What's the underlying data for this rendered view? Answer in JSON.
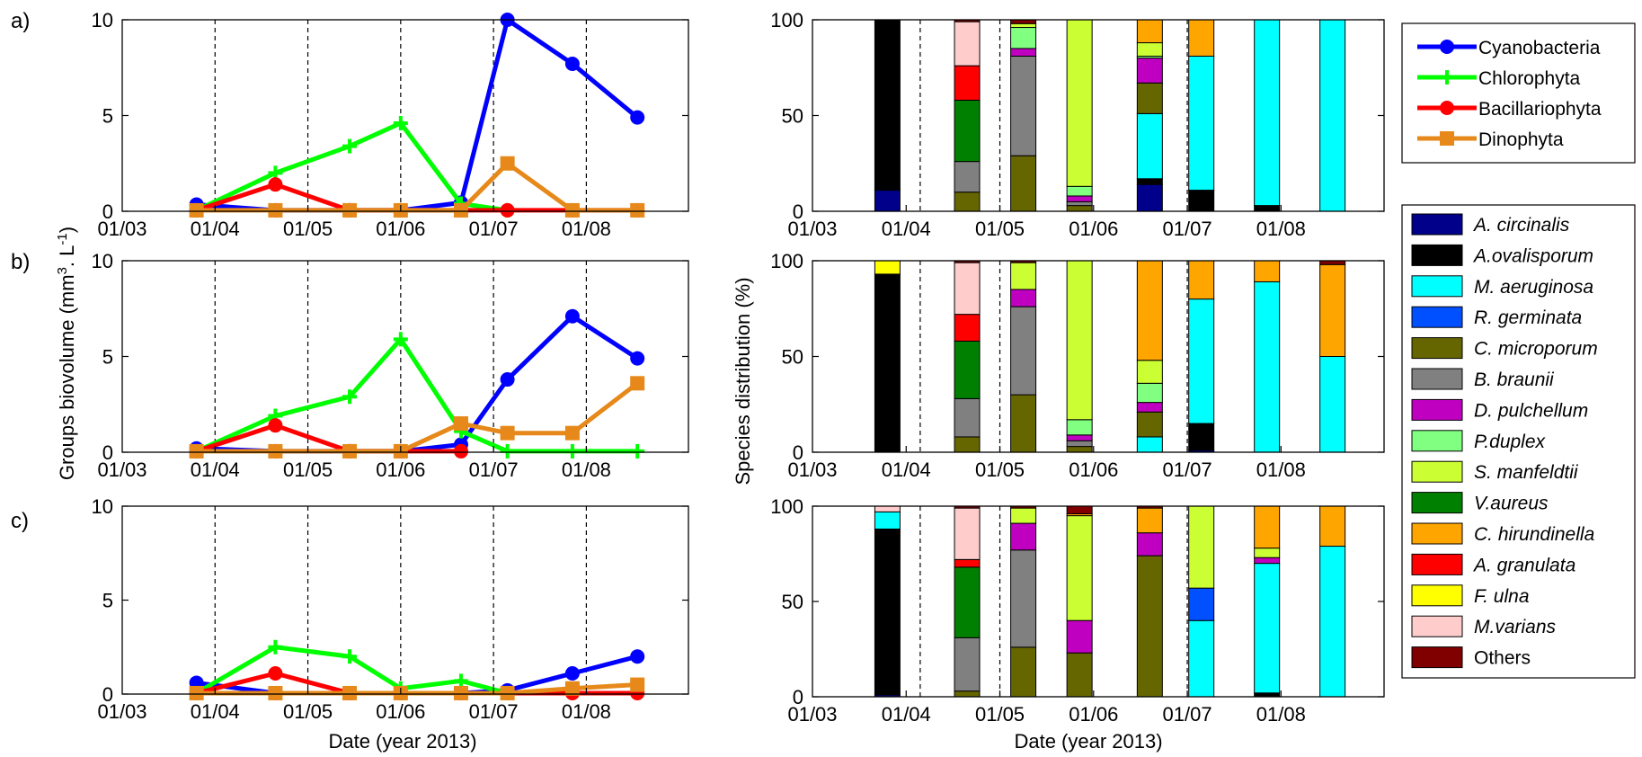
{
  "panel_labels": [
    "a)",
    "b)",
    "c)"
  ],
  "axes_text": {
    "left_ylabel": "Groups biovolume (mm",
    "left_ylabel_sup1": "3",
    "left_ylabel_mid": ". L",
    "left_ylabel_sup2": "-1",
    "left_ylabel_end": ")",
    "left_xlabel": "Date (year 2013)",
    "right_ylabel": "Species distribution (%)",
    "right_xlabel": "Date (year 2013)",
    "months": [
      "01/03",
      "01/04",
      "01/05",
      "01/06",
      "01/07",
      "01/08"
    ]
  },
  "group_legend": [
    {
      "label": "Cyanobacteria",
      "color": "#0000ff",
      "marker": "circle"
    },
    {
      "label": "Chlorophyta",
      "color": "#00ff00",
      "marker": "plus"
    },
    {
      "label": "Bacillariophyta",
      "color": "#ff0000",
      "marker": "circle"
    },
    {
      "label": "Dinophyta",
      "color": "#e6891a",
      "marker": "square"
    }
  ],
  "species_legend": [
    {
      "label": "A. circinalis",
      "color": "#00008b",
      "italic": true
    },
    {
      "label": "A.ovalisporum",
      "color": "#000000",
      "italic": true
    },
    {
      "label": "M. aeruginosa",
      "color": "#00ffff",
      "italic": true
    },
    {
      "label": "R. germinata",
      "color": "#0050ff",
      "italic": true
    },
    {
      "label": "C. microporum",
      "color": "#666600",
      "italic": true
    },
    {
      "label": "B. braunii",
      "color": "#808080",
      "italic": true
    },
    {
      "label": "D. pulchellum",
      "color": "#c000c0",
      "italic": true
    },
    {
      "label": "P.duplex",
      "color": "#80ff80",
      "italic": true
    },
    {
      "label": "S. manfeldtii",
      "color": "#ccff33",
      "italic": true
    },
    {
      "label": "V.aureus",
      "color": "#008000",
      "italic": true
    },
    {
      "label": "C. hirundinella",
      "color": "#ffa500",
      "italic": true
    },
    {
      "label": "A. granulata",
      "color": "#ff0000",
      "italic": true
    },
    {
      "label": "F. ulna",
      "color": "#ffff00",
      "italic": true
    },
    {
      "label": "M.varians",
      "color": "#ffcccc",
      "italic": true
    },
    {
      "label": "Others",
      "color": "#800000",
      "italic": false
    }
  ],
  "chart_data": [
    {
      "type": "line",
      "panel": "a)",
      "xlabel": "",
      "ylabel": "",
      "ylim": [
        0,
        10
      ],
      "yticks": [
        0,
        5,
        10
      ],
      "x_months": [
        "01/03",
        "01/04",
        "01/05",
        "01/06",
        "01/07",
        "01/08"
      ],
      "vlines": [
        1.0,
        2.0,
        3.0,
        4.0,
        5.0
      ],
      "series": [
        {
          "name": "Cyanobacteria",
          "x": [
            0.8,
            1.65,
            2.45,
            3.0,
            3.65,
            4.15,
            4.85,
            5.55
          ],
          "y": [
            0.35,
            0.05,
            0.05,
            0.05,
            0.45,
            10,
            7.7,
            4.9
          ]
        },
        {
          "name": "Chlorophyta",
          "x": [
            0.8,
            1.65,
            2.45,
            3.0,
            3.65,
            4.15
          ],
          "y": [
            0.05,
            2.0,
            3.4,
            4.6,
            0.4,
            0.05
          ]
        },
        {
          "name": "Bacillariophyta",
          "x": [
            0.8,
            1.65,
            2.45,
            3.0,
            3.65,
            4.15,
            4.85,
            5.55
          ],
          "y": [
            0.05,
            1.4,
            0.05,
            0.05,
            0.05,
            0.05,
            0.05,
            0.05
          ]
        },
        {
          "name": "Dinophyta",
          "x": [
            0.8,
            1.65,
            2.45,
            3.0,
            3.65,
            4.15,
            4.85,
            5.55
          ],
          "y": [
            0.05,
            0.05,
            0.05,
            0.05,
            0.05,
            2.5,
            0.05,
            0.05
          ]
        }
      ]
    },
    {
      "type": "line",
      "panel": "b)",
      "xlabel": "",
      "ylabel": "Groups biovolume (mm3. L-1)",
      "ylim": [
        0,
        10
      ],
      "yticks": [
        0,
        5,
        10
      ],
      "x_months": [
        "01/03",
        "01/04",
        "01/05",
        "01/06",
        "01/07",
        "01/08"
      ],
      "vlines": [
        1.0,
        2.0,
        3.0,
        4.0,
        5.0
      ],
      "series": [
        {
          "name": "Cyanobacteria",
          "x": [
            0.8,
            1.65,
            2.45,
            3.0,
            3.65,
            4.15,
            4.85,
            5.55
          ],
          "y": [
            0.2,
            0.05,
            0.05,
            0.05,
            0.4,
            3.8,
            7.1,
            4.9
          ]
        },
        {
          "name": "Chlorophyta",
          "x": [
            0.8,
            1.65,
            2.45,
            3.0,
            3.65,
            4.15,
            4.85,
            5.55
          ],
          "y": [
            0.05,
            1.9,
            2.9,
            5.9,
            1.1,
            0.05,
            0.05,
            0.05
          ]
        },
        {
          "name": "Bacillariophyta",
          "x": [
            0.8,
            1.65,
            2.45,
            3.0,
            3.65
          ],
          "y": [
            0.05,
            1.4,
            0.05,
            0.05,
            0.05
          ]
        },
        {
          "name": "Dinophyta",
          "x": [
            0.8,
            1.65,
            2.45,
            3.0,
            3.65,
            4.15,
            4.85,
            5.55
          ],
          "y": [
            0.05,
            0.05,
            0.05,
            0.05,
            1.5,
            1.0,
            1.0,
            3.6
          ]
        }
      ]
    },
    {
      "type": "line",
      "panel": "c)",
      "xlabel": "Date (year 2013)",
      "ylabel": "",
      "ylim": [
        0,
        10
      ],
      "yticks": [
        0,
        5,
        10
      ],
      "x_months": [
        "01/03",
        "01/04",
        "01/05",
        "01/06",
        "01/07",
        "01/08"
      ],
      "vlines": [
        1.0,
        2.0,
        3.0,
        4.0,
        5.0
      ],
      "series": [
        {
          "name": "Cyanobacteria",
          "x": [
            0.8,
            1.65,
            2.45,
            3.0,
            3.65,
            4.15,
            4.85,
            5.55
          ],
          "y": [
            0.6,
            0.05,
            0.05,
            0.05,
            0.05,
            0.2,
            1.1,
            2.0
          ]
        },
        {
          "name": "Chlorophyta",
          "x": [
            0.8,
            1.65,
            2.45,
            3.0,
            3.65,
            4.15
          ],
          "y": [
            0.05,
            2.5,
            2.0,
            0.3,
            0.7,
            0.05
          ]
        },
        {
          "name": "Bacillariophyta",
          "x": [
            0.8,
            1.65,
            2.45,
            3.0,
            3.65,
            4.15,
            4.85,
            5.55
          ],
          "y": [
            0.05,
            1.1,
            0.05,
            0.05,
            0.05,
            0.05,
            0.05,
            0.05
          ]
        },
        {
          "name": "Dinophyta",
          "x": [
            0.8,
            1.65,
            2.45,
            3.0,
            3.65,
            4.15,
            4.85,
            5.55
          ],
          "y": [
            0.05,
            0.05,
            0.05,
            0.05,
            0.05,
            0.05,
            0.3,
            0.5
          ]
        }
      ]
    },
    {
      "type": "bar",
      "stacked": true,
      "panel": "top-right",
      "ylim": [
        0,
        100
      ],
      "yticks": [
        0,
        50,
        100
      ],
      "x_months": [
        "01/03",
        "01/04",
        "01/05",
        "01/06",
        "01/07",
        "01/08"
      ],
      "vlines": [
        1.15,
        2.0,
        4.0
      ],
      "bars": [
        {
          "x": 0.8,
          "segments": [
            [
              "A. circinalis",
              11
            ],
            [
              "A.ovalisporum",
              89
            ]
          ]
        },
        {
          "x": 1.65,
          "segments": [
            [
              "C. microporum",
              10
            ],
            [
              "B. braunii",
              16
            ],
            [
              "V.aureus",
              32
            ],
            [
              "A. granulata",
              18
            ],
            [
              "M.varians",
              23
            ],
            [
              "Others",
              1
            ]
          ]
        },
        {
          "x": 2.25,
          "segments": [
            [
              "C. microporum",
              29
            ],
            [
              "B. braunii",
              52
            ],
            [
              "D. pulchellum",
              4
            ],
            [
              "P.duplex",
              11
            ],
            [
              "S. manfeldtii",
              2
            ],
            [
              "Others",
              2
            ]
          ]
        },
        {
          "x": 2.85,
          "segments": [
            [
              "C. microporum",
              3
            ],
            [
              "B. braunii",
              2
            ],
            [
              "D. pulchellum",
              3
            ],
            [
              "P.duplex",
              5
            ],
            [
              "S. manfeldtii",
              87
            ]
          ]
        },
        {
          "x": 3.6,
          "segments": [
            [
              "A. circinalis",
              14
            ],
            [
              "A.ovalisporum",
              3
            ],
            [
              "M. aeruginosa",
              34
            ],
            [
              "C. microporum",
              16
            ],
            [
              "D. pulchellum",
              13
            ],
            [
              "P.duplex",
              1
            ],
            [
              "S. manfeldtii",
              7
            ],
            [
              "C. hirundinella",
              12
            ]
          ]
        },
        {
          "x": 4.15,
          "segments": [
            [
              "A.ovalisporum",
              11
            ],
            [
              "M. aeruginosa",
              70
            ],
            [
              "C. hirundinella",
              19
            ]
          ]
        },
        {
          "x": 4.85,
          "segments": [
            [
              "A.ovalisporum",
              3
            ],
            [
              "M. aeruginosa",
              97
            ]
          ]
        },
        {
          "x": 5.55,
          "segments": [
            [
              "M. aeruginosa",
              100
            ]
          ]
        }
      ]
    },
    {
      "type": "bar",
      "stacked": true,
      "panel": "middle-right",
      "ylabel": "Species distribution (%)",
      "ylim": [
        0,
        100
      ],
      "yticks": [
        0,
        50,
        100
      ],
      "x_months": [
        "01/03",
        "01/04",
        "01/05",
        "01/06",
        "01/07",
        "01/08"
      ],
      "vlines": [
        1.15,
        2.0,
        4.0
      ],
      "bars": [
        {
          "x": 0.8,
          "segments": [
            [
              "A.ovalisporum",
              93
            ],
            [
              "F. ulna",
              7
            ]
          ]
        },
        {
          "x": 1.65,
          "segments": [
            [
              "C. microporum",
              8
            ],
            [
              "B. braunii",
              20
            ],
            [
              "V.aureus",
              30
            ],
            [
              "A. granulata",
              14
            ],
            [
              "M.varians",
              27
            ],
            [
              "Others",
              1
            ]
          ]
        },
        {
          "x": 2.25,
          "segments": [
            [
              "C. microporum",
              30
            ],
            [
              "B. braunii",
              46
            ],
            [
              "D. pulchellum",
              9
            ],
            [
              "S. manfeldtii",
              14
            ],
            [
              "Others",
              1
            ]
          ]
        },
        {
          "x": 2.85,
          "segments": [
            [
              "C. microporum",
              3
            ],
            [
              "B. braunii",
              3
            ],
            [
              "D. pulchellum",
              3
            ],
            [
              "P.duplex",
              8
            ],
            [
              "S. manfeldtii",
              83
            ]
          ]
        },
        {
          "x": 3.6,
          "segments": [
            [
              "M. aeruginosa",
              8
            ],
            [
              "C. microporum",
              13
            ],
            [
              "D. pulchellum",
              5
            ],
            [
              "P.duplex",
              10
            ],
            [
              "S. manfeldtii",
              12
            ],
            [
              "C. hirundinella",
              52
            ]
          ]
        },
        {
          "x": 4.15,
          "segments": [
            [
              "A. circinalis",
              1
            ],
            [
              "A.ovalisporum",
              14
            ],
            [
              "M. aeruginosa",
              65
            ],
            [
              "C. hirundinella",
              20
            ]
          ]
        },
        {
          "x": 4.85,
          "segments": [
            [
              "M. aeruginosa",
              89
            ],
            [
              "C. hirundinella",
              11
            ]
          ]
        },
        {
          "x": 5.55,
          "segments": [
            [
              "M. aeruginosa",
              50
            ],
            [
              "C. hirundinella",
              48
            ],
            [
              "Others",
              2
            ]
          ]
        }
      ]
    },
    {
      "type": "bar",
      "stacked": true,
      "panel": "bottom-right",
      "xlabel": "Date (year 2013)",
      "ylim": [
        0,
        100
      ],
      "yticks": [
        0,
        50,
        100
      ],
      "x_months": [
        "01/03",
        "01/04",
        "01/05",
        "01/06",
        "01/07",
        "01/08"
      ],
      "vlines": [
        1.15,
        2.0,
        4.0
      ],
      "bars": [
        {
          "x": 0.8,
          "segments": [
            [
              "A. circinalis",
              1
            ],
            [
              "A.ovalisporum",
              87
            ],
            [
              "M. aeruginosa",
              9
            ],
            [
              "M.varians",
              3
            ]
          ]
        },
        {
          "x": 1.65,
          "segments": [
            [
              "C. microporum",
              3
            ],
            [
              "B. braunii",
              28
            ],
            [
              "V.aureus",
              37
            ],
            [
              "A. granulata",
              4
            ],
            [
              "M.varians",
              27
            ],
            [
              "Others",
              1
            ]
          ]
        },
        {
          "x": 2.25,
          "segments": [
            [
              "C. microporum",
              26
            ],
            [
              "B. braunii",
              51
            ],
            [
              "D. pulchellum",
              14
            ],
            [
              "S. manfeldtii",
              8
            ],
            [
              "Others",
              1
            ]
          ]
        },
        {
          "x": 2.85,
          "segments": [
            [
              "C. microporum",
              23
            ],
            [
              "D. pulchellum",
              17
            ],
            [
              "S. manfeldtii",
              55
            ],
            [
              "C. hirundinella",
              1
            ],
            [
              "Others",
              4
            ]
          ]
        },
        {
          "x": 3.6,
          "segments": [
            [
              "C. microporum",
              74
            ],
            [
              "D. pulchellum",
              12
            ],
            [
              "C. hirundinella",
              13
            ],
            [
              "Others",
              1
            ]
          ]
        },
        {
          "x": 4.15,
          "segments": [
            [
              "M. aeruginosa",
              40
            ],
            [
              "R. germinata",
              17
            ],
            [
              "S. manfeldtii",
              43
            ]
          ]
        },
        {
          "x": 4.85,
          "segments": [
            [
              "A.ovalisporum",
              2
            ],
            [
              "M. aeruginosa",
              68
            ],
            [
              "D. pulchellum",
              3
            ],
            [
              "S. manfeldtii",
              5
            ],
            [
              "C. hirundinella",
              22
            ]
          ]
        },
        {
          "x": 5.55,
          "segments": [
            [
              "M. aeruginosa",
              79
            ],
            [
              "C. hirundinella",
              21
            ]
          ]
        }
      ]
    }
  ]
}
